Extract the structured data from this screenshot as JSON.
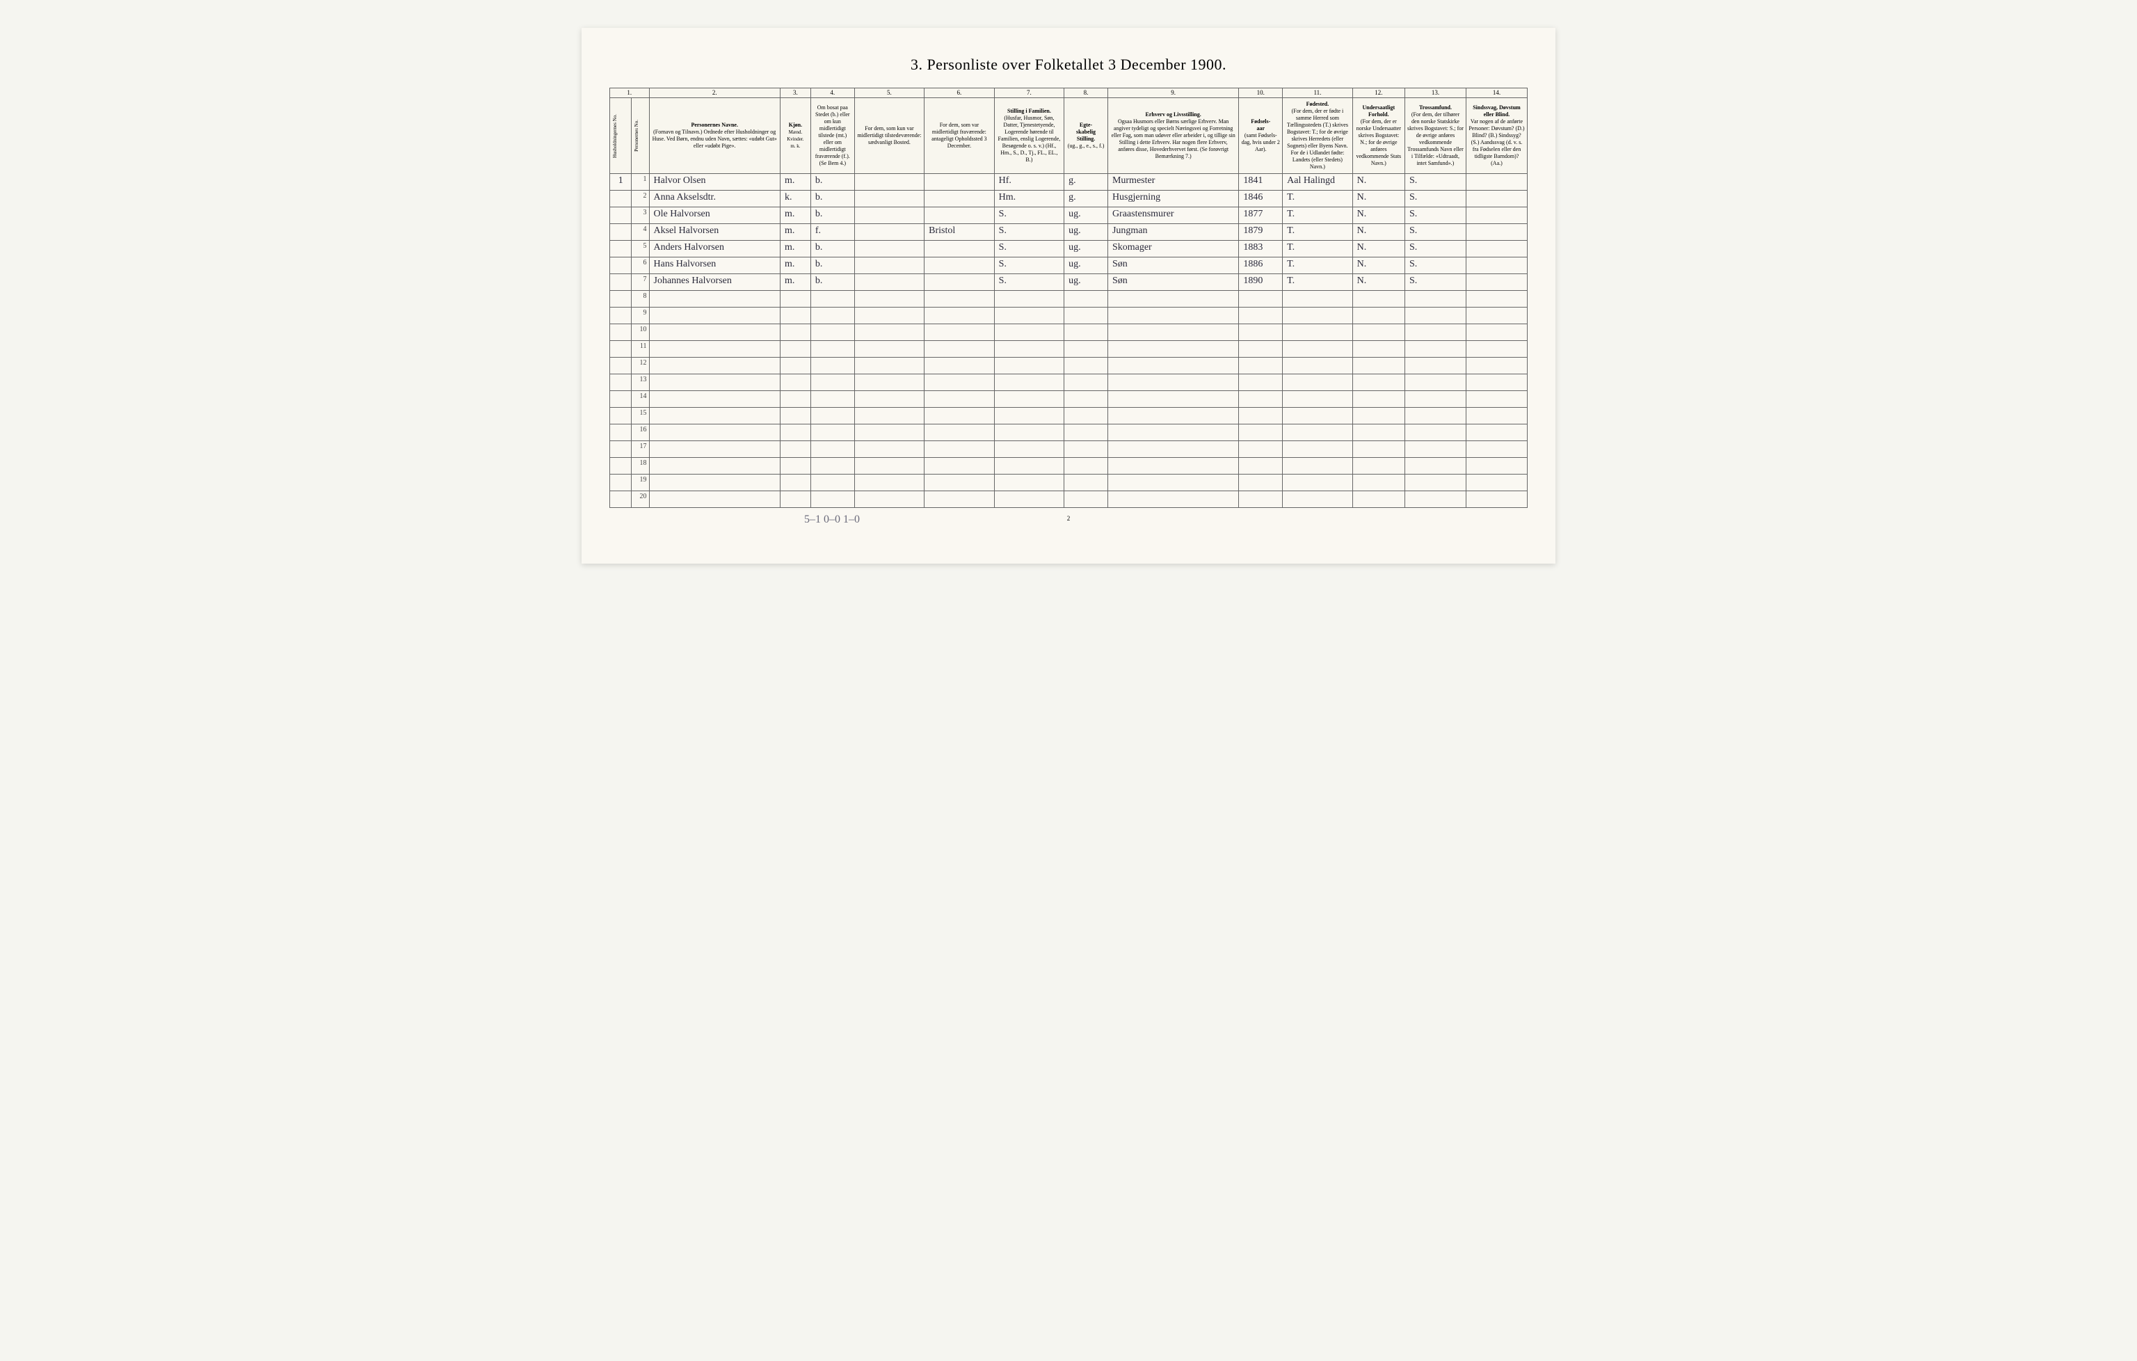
{
  "title": "3. Personliste over Folketallet 3 December 1900.",
  "page_number": "2",
  "footer_tally": "5–1   0–0   1–0",
  "col_numbers": [
    "1.",
    "2.",
    "3.",
    "4.",
    "5.",
    "6.",
    "7.",
    "8.",
    "9.",
    "10.",
    "11.",
    "12.",
    "13.",
    "14."
  ],
  "headers": {
    "hh_no": "Husholdningernes No.",
    "pers_no": "Personernes No.",
    "name": "Personernes Navne.\n(Fornavn og Tilnavn.)\nOrdnede efter Husholdninger og Huse.\nVed Børn, endnu uden Navn, sættes: «udøbt Gut» eller «udøbt Pige».",
    "sex": "Kjøn.\nMænd. Kvinder.\nm.  k.",
    "residence": "Om bosat paa Stedet (b.) eller om kun midlertidigt tilstede (mt.) eller om midlertidigt fraværende (f.). (Se Bem 4.)",
    "temp_present": "For dem, som kun var midlertidigt tilstedeværende:\nsædvanligt Bosted.",
    "temp_absent": "For dem, som var midlertidigt fraværende:\nantageligt Opholdssted 3 December.",
    "family_pos": "Stilling i Familien.\n(Husfar, Husmor, Søn, Datter, Tjenestetyende, Logerende hørende til Familien, enslig Logerende, Besøgende o. s. v.)\n(Hf., Hm., S., D., Tj., FL., EL., B.)",
    "marital": "Egteskabelig Stilling.\n(ug., g., e., s., f.)",
    "occupation": "Erhverv og Livsstilling.\nOgsaa Husmors eller Børns særlige Erhverv. Man angiver tydeligt og specielt Næringsvei og Forretning eller Fag, som man udøver eller arbeider i, og tillige sin Stilling i dette Erhverv. Har nogen flere Erhverv, anføres disse, Hovederhvervet først.\n(Se forøvrigt Bemærkning 7.)",
    "birth_year": "Fødsels-aar\n(samt Fødsels-dag, hvis under 2 Aar).",
    "birthplace": "Fødested.\n(For dem, der er fødte i samme Herred som Tællingsstedets (T.) skrives Bogstavet: T.; for de øvrige skrives Herredets (eller Sognets) eller Byens Navn. For de i Udlandet fødte: Landets (eller Stedets) Navn.)",
    "nationality": "Undersaatligt Forhold.\n(For dem, der er norske Undersaatter skrives Bogstavet: N.; for de øvrige anføres vedkommende Stats Navn.)",
    "religion": "Trossamfund.\n(For dem, der tilhører den norske Statskirke skrives Bogstavet: S.; for de øvrige anføres vedkommende Trossamfunds Navn eller i Tilfælde: «Udtraadt, intet Samfund».)",
    "disability": "Sindssvag, Døvstum eller Blind.\nVar nogen af de anførte Personer:\nDøvstum? (D.)\nBlind? (B.)\nSindssyg? (S.)\nAandssvag (d. v. s. fra Fødselen eller den tidligste Barndom)? (Aa.)"
  },
  "rows": [
    {
      "hh": "1",
      "n": "1",
      "name": "Halvor Olsen",
      "sex": "m.",
      "res": "b.",
      "temp_present": "",
      "temp_absent": "",
      "fam": "Hf.",
      "mar": "g.",
      "occ": "Murmester",
      "year": "1841",
      "birthplace": "Aal Halingd",
      "nat": "N.",
      "rel": "S.",
      "dis": ""
    },
    {
      "hh": "",
      "n": "2",
      "name": "Anna Akselsdtr.",
      "sex": "k.",
      "res": "b.",
      "temp_present": "",
      "temp_absent": "",
      "fam": "Hm.",
      "mar": "g.",
      "occ": "Husgjerning",
      "year": "1846",
      "birthplace": "T.",
      "nat": "N.",
      "rel": "S.",
      "dis": ""
    },
    {
      "hh": "",
      "n": "3",
      "name": "Ole Halvorsen",
      "sex": "m.",
      "res": "b.",
      "temp_present": "",
      "temp_absent": "",
      "fam": "S.",
      "mar": "ug.",
      "occ": "Graastensmurer",
      "year": "1877",
      "birthplace": "T.",
      "nat": "N.",
      "rel": "S.",
      "dis": ""
    },
    {
      "hh": "",
      "n": "4",
      "name": "Aksel Halvorsen",
      "sex": "m.",
      "res": "f.",
      "temp_present": "",
      "temp_absent": "Bristol",
      "fam": "S.",
      "mar": "ug.",
      "occ": "Jungman",
      "year": "1879",
      "birthplace": "T.",
      "nat": "N.",
      "rel": "S.",
      "dis": "",
      "check": true
    },
    {
      "hh": "",
      "n": "5",
      "name": "Anders Halvorsen",
      "sex": "m.",
      "res": "b.",
      "temp_present": "",
      "temp_absent": "",
      "fam": "S.",
      "mar": "ug.",
      "occ": "Skomager",
      "year": "1883",
      "birthplace": "T.",
      "nat": "N.",
      "rel": "S.",
      "dis": ""
    },
    {
      "hh": "",
      "n": "6",
      "name": "Hans Halvorsen",
      "sex": "m.",
      "res": "b.",
      "temp_present": "",
      "temp_absent": "",
      "fam": "S.",
      "mar": "ug.",
      "occ": "Søn",
      "year": "1886",
      "birthplace": "T.",
      "nat": "N.",
      "rel": "S.",
      "dis": ""
    },
    {
      "hh": "",
      "n": "7",
      "name": "Johannes Halvorsen",
      "sex": "m.",
      "res": "b.",
      "temp_present": "",
      "temp_absent": "",
      "fam": "S.",
      "mar": "ug.",
      "occ": "Søn",
      "year": "1890",
      "birthplace": "T.",
      "nat": "N.",
      "rel": "S.",
      "dis": ""
    }
  ],
  "blank_rows": [
    "8",
    "9",
    "10",
    "11",
    "12",
    "13",
    "14",
    "15",
    "16",
    "17",
    "18",
    "19",
    "20"
  ],
  "col_widths_pct": [
    2.5,
    2.0,
    15,
    3.5,
    5,
    8,
    8,
    8,
    5,
    15,
    5,
    8,
    6,
    7,
    7
  ],
  "colors": {
    "paper": "#faf8f2",
    "border": "#666",
    "ink": "#2a2a3a"
  }
}
